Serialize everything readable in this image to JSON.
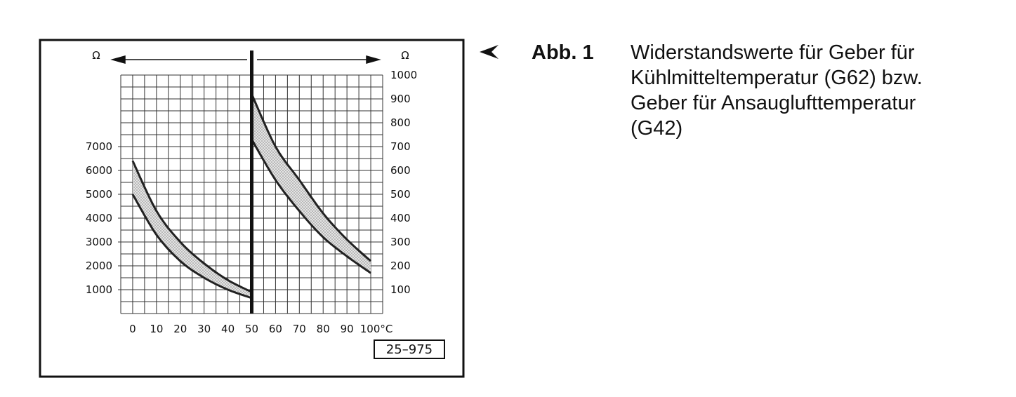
{
  "chart_data": {
    "type": "line",
    "y_label": "Ω",
    "y2_label": "Ω",
    "x": [
      0,
      10,
      20,
      30,
      40,
      50,
      60,
      70,
      80,
      90,
      100
    ],
    "xlim": [
      -5,
      105
    ],
    "xticks": [
      0,
      10,
      20,
      30,
      40,
      50,
      60,
      70,
      80,
      90,
      {
        "value": 100,
        "label": "100°C"
      }
    ],
    "ylim": [
      0,
      10000
    ],
    "yticks": [
      1000,
      2000,
      3000,
      4000,
      5000,
      6000,
      7000
    ],
    "y2lim": [
      0,
      1000
    ],
    "y2ticks": [
      100,
      200,
      300,
      400,
      500,
      600,
      700,
      800,
      900,
      1000
    ],
    "grid": true,
    "series": [
      {
        "color": "#222",
        "values": [
          6400,
          4300,
          3000,
          2100,
          1400,
          900,
          null,
          null,
          null,
          null,
          null
        ]
      },
      {
        "color": "#222",
        "values": [
          5000,
          3300,
          2200,
          1500,
          1000,
          650,
          null,
          null,
          null,
          null,
          null
        ]
      },
      {
        "color": "#222",
        "axis": "y2",
        "values": [
          null,
          null,
          null,
          null,
          null,
          920,
          700,
          560,
          420,
          310,
          220
        ]
      },
      {
        "color": "#222",
        "axis": "y2",
        "values": [
          null,
          null,
          null,
          null,
          null,
          730,
          560,
          430,
          320,
          240,
          170
        ]
      }
    ],
    "figure_code": "25–975"
  },
  "caption": {
    "label": "Abb. 1",
    "lines": [
      "Widerstandswerte für Geber für",
      "Kühlmitteltemperatur (G62) bzw.",
      "Geber für Ansauglufttemperatur",
      "(G42)"
    ]
  }
}
